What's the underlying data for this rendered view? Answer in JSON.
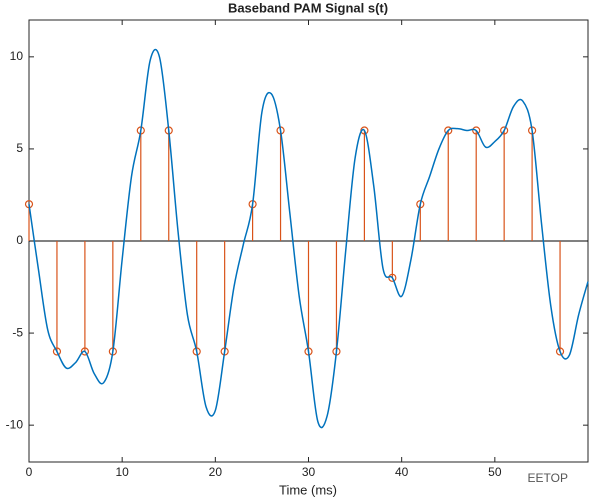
{
  "chart_data": {
    "type": "line",
    "title": "Baseband PAM Signal s(t)",
    "x_label": "Time (ms)",
    "watermark": "EETOP",
    "xlim": [
      0,
      60
    ],
    "ylim": [
      -12,
      12
    ],
    "xticks": [
      0,
      10,
      20,
      30,
      40,
      50
    ],
    "yticks": [
      -10,
      -5,
      0,
      5,
      10
    ],
    "series": [
      {
        "type": "line",
        "color": "#0072bd",
        "x": [
          0,
          1,
          2,
          3,
          4,
          5,
          6,
          7,
          8,
          9,
          10,
          11,
          12,
          13,
          14,
          15,
          16,
          17,
          18,
          19,
          20,
          21,
          22,
          23,
          24,
          25,
          26,
          27,
          28,
          29,
          30,
          31,
          32,
          33,
          34,
          35,
          36,
          37,
          38,
          39,
          40,
          41,
          42,
          43,
          44,
          45,
          46,
          47,
          48,
          49,
          50,
          51,
          52,
          53,
          54,
          55,
          56,
          57,
          58,
          59,
          60
        ],
        "values": [
          2,
          -1.5,
          -4.8,
          -6,
          -6.9,
          -6.6,
          -6,
          -7.2,
          -7.7,
          -6,
          -1,
          3.5,
          6,
          9.8,
          10,
          6,
          0.5,
          -4,
          -6,
          -9,
          -9.2,
          -6,
          -2.5,
          -0.2,
          2,
          7,
          8,
          6,
          1.5,
          -3,
          -6,
          -9.8,
          -9.5,
          -6,
          -0.5,
          4.5,
          6,
          3,
          -1.5,
          -2,
          -3,
          -1,
          2,
          3.5,
          5,
          6,
          6.1,
          6,
          6,
          5.1,
          5.4,
          6,
          7.3,
          7.6,
          6,
          1,
          -3.5,
          -6,
          -6.2,
          -4,
          -2.2
        ]
      },
      {
        "type": "stem",
        "color": "#d95319",
        "x": [
          0,
          3,
          6,
          9,
          12,
          15,
          18,
          21,
          24,
          27,
          30,
          33,
          36,
          39,
          42,
          45,
          48,
          51,
          54,
          57
        ],
        "values": [
          2,
          -6,
          -6,
          -6,
          6,
          6,
          -6,
          -6,
          2,
          6,
          -6,
          -6,
          6,
          -2,
          2,
          6,
          6,
          6,
          6,
          -6
        ]
      }
    ]
  }
}
